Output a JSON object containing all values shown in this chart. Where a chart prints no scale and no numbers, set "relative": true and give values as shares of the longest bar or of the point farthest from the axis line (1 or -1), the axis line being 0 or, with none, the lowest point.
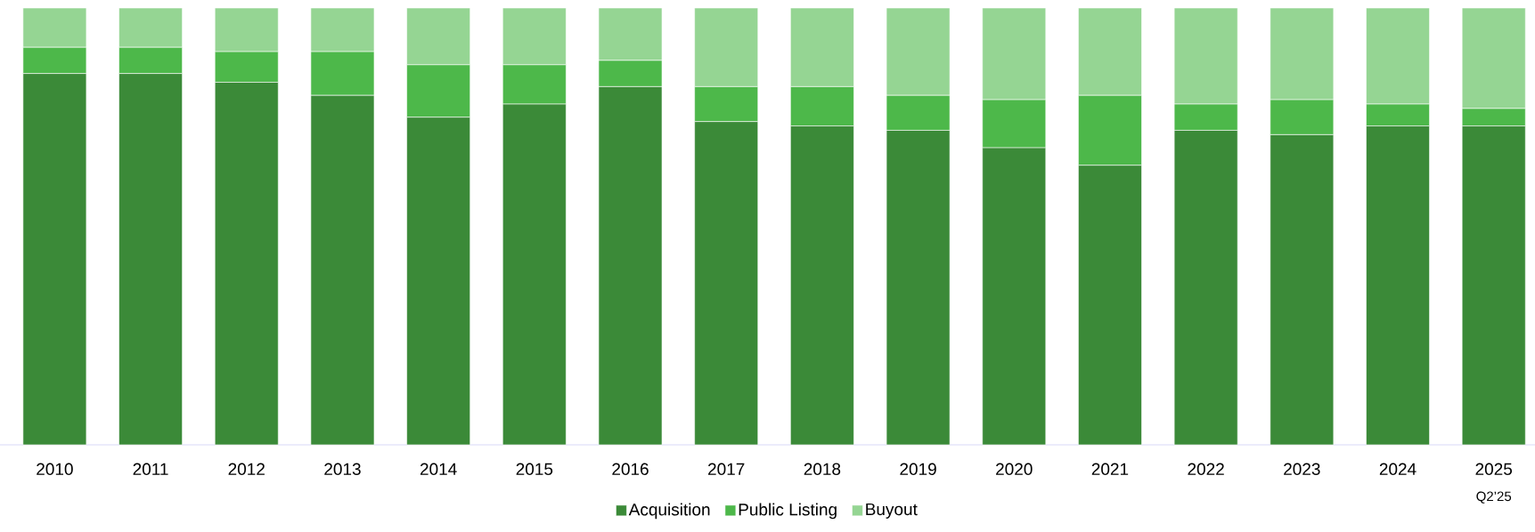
{
  "chart_data": {
    "type": "bar",
    "stacked": true,
    "relative": true,
    "legend": "bottom",
    "categories": [
      "2010",
      "2011",
      "2012",
      "2013",
      "2014",
      "2015",
      "2016",
      "2017",
      "2018",
      "2019",
      "2020",
      "2021",
      "2022",
      "2023",
      "2024",
      "2025"
    ],
    "series": [
      {
        "name": "Acquisition",
        "color": "#3b8a38",
        "values": [
          0.85,
          0.85,
          0.83,
          0.8,
          0.75,
          0.78,
          0.82,
          0.74,
          0.73,
          0.72,
          0.68,
          0.64,
          0.72,
          0.71,
          0.73,
          0.73
        ]
      },
      {
        "name": "Public Listing",
        "color": "#4db84a",
        "values": [
          0.06,
          0.06,
          0.07,
          0.1,
          0.12,
          0.09,
          0.06,
          0.08,
          0.09,
          0.08,
          0.11,
          0.16,
          0.06,
          0.08,
          0.05,
          0.04
        ]
      },
      {
        "name": "Buyout",
        "color": "#95d593",
        "values": [
          0.09,
          0.09,
          0.1,
          0.1,
          0.13,
          0.13,
          0.12,
          0.18,
          0.18,
          0.2,
          0.21,
          0.2,
          0.22,
          0.21,
          0.22,
          0.23
        ]
      }
    ],
    "annotations": [
      "Q2’25"
    ]
  }
}
